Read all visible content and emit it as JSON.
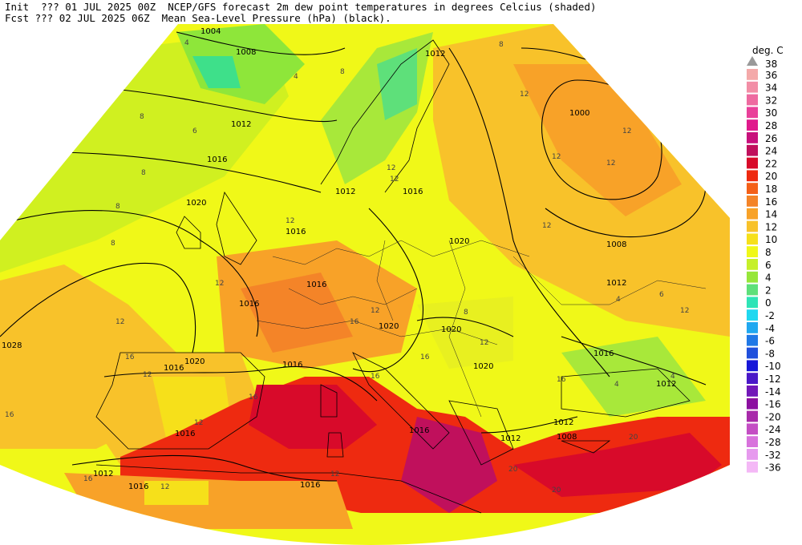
{
  "header": {
    "line1": "Init  ??? 01 JUL 2025 00Z  NCEP/GFS forecast 2m dew point temperatures in degrees Celcius (shaded)",
    "line2": "Fcst ??? 02 JUL 2025 06Z  Mean Sea-Level Pressure (hPa) (black)."
  },
  "legend": {
    "title": "deg. C",
    "top_marker": "38",
    "entries": [
      {
        "label": "36",
        "color": "#f4a9a9"
      },
      {
        "label": "34",
        "color": "#f28ea6"
      },
      {
        "label": "32",
        "color": "#ee6aa0"
      },
      {
        "label": "30",
        "color": "#e9409a"
      },
      {
        "label": "28",
        "color": "#e01a8c"
      },
      {
        "label": "26",
        "color": "#c8107c"
      },
      {
        "label": "24",
        "color": "#c0105c"
      },
      {
        "label": "22",
        "color": "#d80a2a"
      },
      {
        "label": "20",
        "color": "#ee2a10"
      },
      {
        "label": "18",
        "color": "#f46018"
      },
      {
        "label": "16",
        "color": "#f48428"
      },
      {
        "label": "14",
        "color": "#f8a228"
      },
      {
        "label": "12",
        "color": "#f8c22a"
      },
      {
        "label": "10",
        "color": "#f6e01a"
      },
      {
        "label": "8",
        "color": "#f0f818"
      },
      {
        "label": "6",
        "color": "#c6f02a"
      },
      {
        "label": "4",
        "color": "#96e63a"
      },
      {
        "label": "2",
        "color": "#5ee07a"
      },
      {
        "label": "0",
        "color": "#2ee4b6"
      },
      {
        "label": "-2",
        "color": "#20d8f0"
      },
      {
        "label": "-4",
        "color": "#20a8f0"
      },
      {
        "label": "-6",
        "color": "#2078e6"
      },
      {
        "label": "-8",
        "color": "#2050dc"
      },
      {
        "label": "-10",
        "color": "#1818d8"
      },
      {
        "label": "-12",
        "color": "#4a18c8"
      },
      {
        "label": "-14",
        "color": "#7218b8"
      },
      {
        "label": "-16",
        "color": "#8c10a0"
      },
      {
        "label": "-20",
        "color": "#a82aaa"
      },
      {
        "label": "-24",
        "color": "#c44ec4"
      },
      {
        "label": "-28",
        "color": "#d872dc"
      },
      {
        "label": "-32",
        "color": "#e69aee"
      },
      {
        "label": "-36",
        "color": "#f4b8f6"
      }
    ]
  },
  "map": {
    "isobar_labels": [
      "1004",
      "1008",
      "1012",
      "1016",
      "1020",
      "1028",
      "1000",
      "1012",
      "1016",
      "1020",
      "1012",
      "1016",
      "1012",
      "1016",
      "1016",
      "1020",
      "1020",
      "1020",
      "1016",
      "1016",
      "1012",
      "1016",
      "1016",
      "1012",
      "1016",
      "1008",
      "1012",
      "1016",
      "1012",
      "1008",
      "1020",
      "1016"
    ],
    "dewpoint_labels": [
      "4",
      "8",
      "4",
      "8",
      "8",
      "6",
      "12",
      "8",
      "12",
      "12",
      "12",
      "12",
      "12",
      "12",
      "12",
      "12",
      "12",
      "12",
      "12",
      "12",
      "16",
      "16",
      "16",
      "16",
      "16",
      "16",
      "20",
      "20",
      "20",
      "8",
      "6",
      "4",
      "8",
      "12",
      "16",
      "12",
      "12",
      "8",
      "4",
      "4",
      "16",
      "12"
    ]
  }
}
